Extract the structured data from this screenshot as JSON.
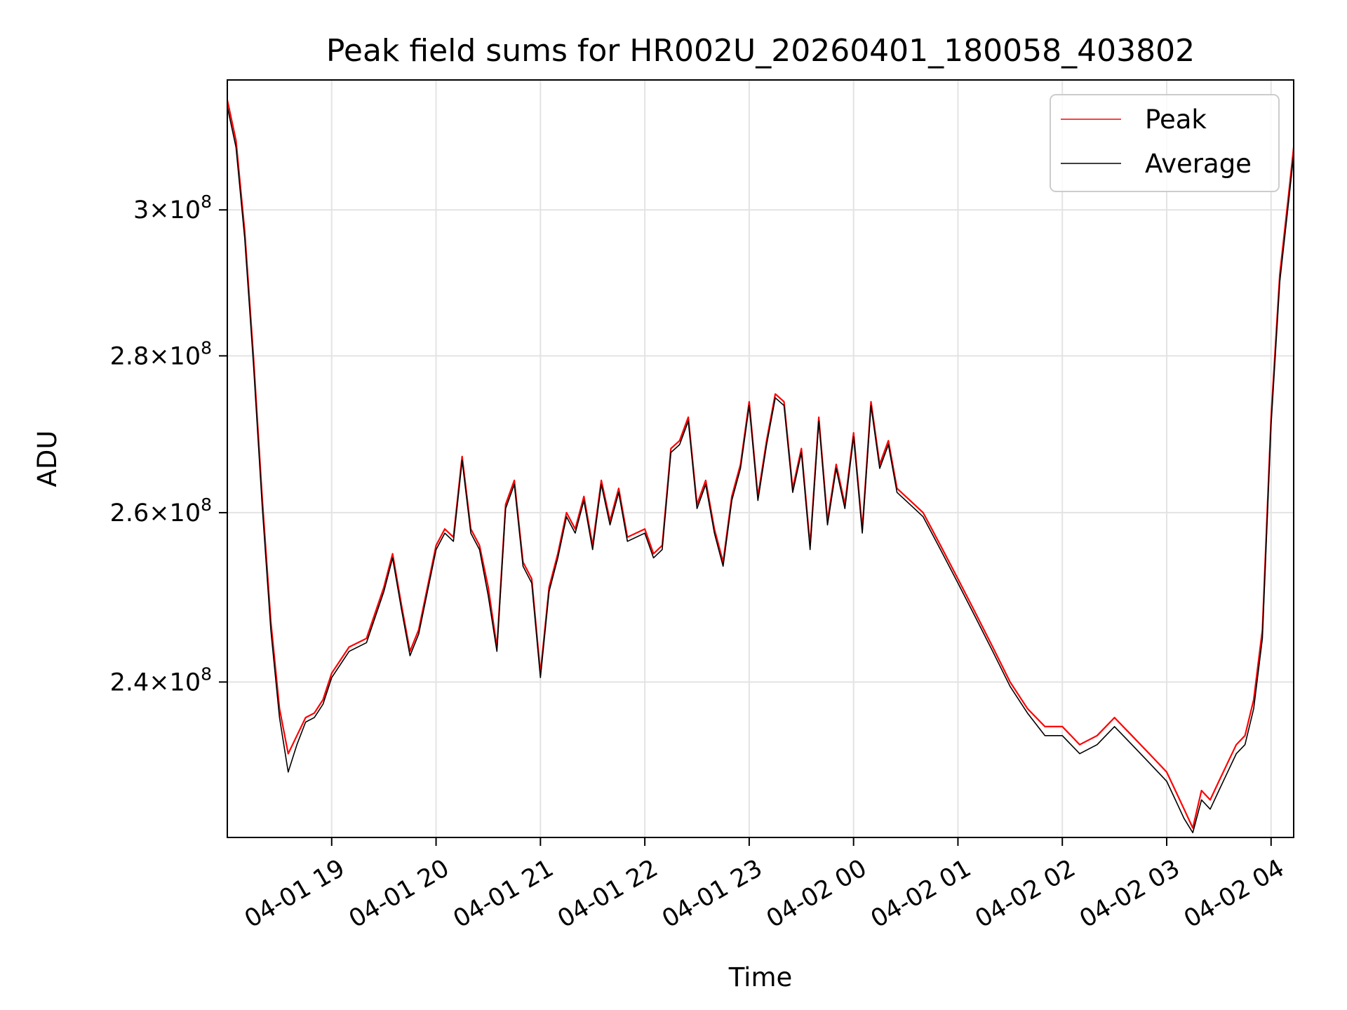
{
  "chart_data": {
    "type": "line",
    "title": "Peak field sums for HR002U_20260401_180058_403802",
    "xlabel": "Time",
    "ylabel": "ADU",
    "x_ticks": [
      "04-01 19",
      "04-01 20",
      "04-01 21",
      "04-01 22",
      "04-01 23",
      "04-02 00",
      "04-02 01",
      "04-02 02",
      "04-02 03",
      "04-02 04"
    ],
    "y_ticks": [
      {
        "value": 240000000,
        "mantissa": "2.4",
        "exponent": "8"
      },
      {
        "value": 260000000,
        "mantissa": "2.6",
        "exponent": "8"
      },
      {
        "value": 280000000,
        "mantissa": "2.8",
        "exponent": "8"
      },
      {
        "value": 300000000,
        "mantissa": "3",
        "exponent": "8"
      }
    ],
    "x_range": [
      "2026-04-01 18:00",
      "2026-04-02 04:13"
    ],
    "y_range": [
      223000000,
      319000000
    ],
    "y_scale": "log",
    "grid": true,
    "legend_position": "top-right",
    "series": [
      {
        "name": "Peak",
        "color": "#ff0000",
        "x": [
          "2026-04-01 18:00",
          "2026-04-01 18:05",
          "2026-04-01 18:10",
          "2026-04-01 18:15",
          "2026-04-01 18:20",
          "2026-04-01 18:25",
          "2026-04-01 18:30",
          "2026-04-01 18:35",
          "2026-04-01 18:40",
          "2026-04-01 18:45",
          "2026-04-01 18:50",
          "2026-04-01 18:55",
          "2026-04-01 19:00",
          "2026-04-01 19:10",
          "2026-04-01 19:20",
          "2026-04-01 19:30",
          "2026-04-01 19:35",
          "2026-04-01 19:40",
          "2026-04-01 19:45",
          "2026-04-01 19:50",
          "2026-04-01 20:00",
          "2026-04-01 20:05",
          "2026-04-01 20:10",
          "2026-04-01 20:15",
          "2026-04-01 20:20",
          "2026-04-01 20:25",
          "2026-04-01 20:30",
          "2026-04-01 20:35",
          "2026-04-01 20:40",
          "2026-04-01 20:45",
          "2026-04-01 20:50",
          "2026-04-01 20:55",
          "2026-04-01 21:00",
          "2026-04-01 21:05",
          "2026-04-01 21:10",
          "2026-04-01 21:15",
          "2026-04-01 21:20",
          "2026-04-01 21:25",
          "2026-04-01 21:30",
          "2026-04-01 21:35",
          "2026-04-01 21:40",
          "2026-04-01 21:45",
          "2026-04-01 21:50",
          "2026-04-01 22:00",
          "2026-04-01 22:05",
          "2026-04-01 22:10",
          "2026-04-01 22:15",
          "2026-04-01 22:20",
          "2026-04-01 22:25",
          "2026-04-01 22:30",
          "2026-04-01 22:35",
          "2026-04-01 22:40",
          "2026-04-01 22:45",
          "2026-04-01 22:50",
          "2026-04-01 22:55",
          "2026-04-01 23:00",
          "2026-04-01 23:05",
          "2026-04-01 23:10",
          "2026-04-01 23:15",
          "2026-04-01 23:20",
          "2026-04-01 23:25",
          "2026-04-01 23:30",
          "2026-04-01 23:35",
          "2026-04-01 23:40",
          "2026-04-01 23:45",
          "2026-04-01 23:50",
          "2026-04-01 23:55",
          "2026-04-02 00:00",
          "2026-04-02 00:05",
          "2026-04-02 00:10",
          "2026-04-02 00:15",
          "2026-04-02 00:20",
          "2026-04-02 00:25",
          "2026-04-02 00:30",
          "2026-04-02 00:35",
          "2026-04-02 00:40",
          "2026-04-02 00:45",
          "2026-04-02 00:50",
          "2026-04-02 01:00",
          "2026-04-02 01:10",
          "2026-04-02 01:20",
          "2026-04-02 01:30",
          "2026-04-02 01:40",
          "2026-04-02 01:50",
          "2026-04-02 02:00",
          "2026-04-02 02:10",
          "2026-04-02 02:20",
          "2026-04-02 02:30",
          "2026-04-02 02:40",
          "2026-04-02 02:50",
          "2026-04-02 03:00",
          "2026-04-02 03:05",
          "2026-04-02 03:10",
          "2026-04-02 03:15",
          "2026-04-02 03:20",
          "2026-04-02 03:25",
          "2026-04-02 03:30",
          "2026-04-02 03:35",
          "2026-04-02 03:40",
          "2026-04-02 03:45",
          "2026-04-02 03:50",
          "2026-04-02 03:55",
          "2026-04-02 04:00",
          "2026-04-02 04:05",
          "2026-04-02 04:10",
          "2026-04-02 04:13"
        ],
        "y": [
          316000000,
          310000000,
          297000000,
          280000000,
          262000000,
          247000000,
          237000000,
          232000000,
          234000000,
          236000000,
          236500000,
          238000000,
          241000000,
          244000000,
          245000000,
          251000000,
          255000000,
          249000000,
          243500000,
          246000000,
          256000000,
          258000000,
          257000000,
          267000000,
          258000000,
          256000000,
          251000000,
          244000000,
          261000000,
          264000000,
          254000000,
          252000000,
          241000000,
          251000000,
          255000000,
          260000000,
          258000000,
          262000000,
          256000000,
          264000000,
          259000000,
          263000000,
          257000000,
          258000000,
          255000000,
          256000000,
          268000000,
          269000000,
          272000000,
          261000000,
          264000000,
          258000000,
          254000000,
          262000000,
          266000000,
          274000000,
          262000000,
          269000000,
          275000000,
          274000000,
          263000000,
          268000000,
          256000000,
          272000000,
          259000000,
          266000000,
          261000000,
          270000000,
          258000000,
          274000000,
          266000000,
          269000000,
          263000000,
          262000000,
          261000000,
          260000000,
          258000000,
          256000000,
          252000000,
          248000000,
          244000000,
          240000000,
          237000000,
          235000000,
          235000000,
          233000000,
          234000000,
          236000000,
          234000000,
          232000000,
          230000000,
          228000000,
          226000000,
          224000000,
          228000000,
          227000000,
          229000000,
          231000000,
          233000000,
          234000000,
          238000000,
          246000000,
          272000000,
          291000000,
          302000000,
          309000000
        ]
      },
      {
        "name": "Average",
        "color": "#000000",
        "x": [
          "2026-04-01 18:00",
          "2026-04-01 18:05",
          "2026-04-01 18:10",
          "2026-04-01 18:15",
          "2026-04-01 18:20",
          "2026-04-01 18:25",
          "2026-04-01 18:30",
          "2026-04-01 18:35",
          "2026-04-01 18:40",
          "2026-04-01 18:45",
          "2026-04-01 18:50",
          "2026-04-01 18:55",
          "2026-04-01 19:00",
          "2026-04-01 19:10",
          "2026-04-01 19:20",
          "2026-04-01 19:30",
          "2026-04-01 19:35",
          "2026-04-01 19:40",
          "2026-04-01 19:45",
          "2026-04-01 19:50",
          "2026-04-01 20:00",
          "2026-04-01 20:05",
          "2026-04-01 20:10",
          "2026-04-01 20:15",
          "2026-04-01 20:20",
          "2026-04-01 20:25",
          "2026-04-01 20:30",
          "2026-04-01 20:35",
          "2026-04-01 20:40",
          "2026-04-01 20:45",
          "2026-04-01 20:50",
          "2026-04-01 20:55",
          "2026-04-01 21:00",
          "2026-04-01 21:05",
          "2026-04-01 21:10",
          "2026-04-01 21:15",
          "2026-04-01 21:20",
          "2026-04-01 21:25",
          "2026-04-01 21:30",
          "2026-04-01 21:35",
          "2026-04-01 21:40",
          "2026-04-01 21:45",
          "2026-04-01 21:50",
          "2026-04-01 22:00",
          "2026-04-01 22:05",
          "2026-04-01 22:10",
          "2026-04-01 22:15",
          "2026-04-01 22:20",
          "2026-04-01 22:25",
          "2026-04-01 22:30",
          "2026-04-01 22:35",
          "2026-04-01 22:40",
          "2026-04-01 22:45",
          "2026-04-01 22:50",
          "2026-04-01 22:55",
          "2026-04-01 23:00",
          "2026-04-01 23:05",
          "2026-04-01 23:10",
          "2026-04-01 23:15",
          "2026-04-01 23:20",
          "2026-04-01 23:25",
          "2026-04-01 23:30",
          "2026-04-01 23:35",
          "2026-04-01 23:40",
          "2026-04-01 23:45",
          "2026-04-01 23:50",
          "2026-04-01 23:55",
          "2026-04-02 00:00",
          "2026-04-02 00:05",
          "2026-04-02 00:10",
          "2026-04-02 00:15",
          "2026-04-02 00:20",
          "2026-04-02 00:25",
          "2026-04-02 00:30",
          "2026-04-02 00:35",
          "2026-04-02 00:40",
          "2026-04-02 00:45",
          "2026-04-02 00:50",
          "2026-04-02 01:00",
          "2026-04-02 01:10",
          "2026-04-02 01:20",
          "2026-04-02 01:30",
          "2026-04-02 01:40",
          "2026-04-02 01:50",
          "2026-04-02 02:00",
          "2026-04-02 02:10",
          "2026-04-02 02:20",
          "2026-04-02 02:30",
          "2026-04-02 02:40",
          "2026-04-02 02:50",
          "2026-04-02 03:00",
          "2026-04-02 03:05",
          "2026-04-02 03:10",
          "2026-04-02 03:15",
          "2026-04-02 03:20",
          "2026-04-02 03:25",
          "2026-04-02 03:30",
          "2026-04-02 03:35",
          "2026-04-02 03:40",
          "2026-04-02 03:45",
          "2026-04-02 03:50",
          "2026-04-02 03:55",
          "2026-04-02 04:00",
          "2026-04-02 04:05",
          "2026-04-02 04:10",
          "2026-04-02 04:13"
        ],
        "y": [
          315000000,
          309000000,
          296000000,
          279000000,
          261000000,
          246000000,
          236000000,
          230000000,
          233000000,
          235500000,
          236000000,
          237500000,
          240500000,
          243500000,
          244500000,
          250500000,
          254500000,
          248500000,
          243000000,
          245500000,
          255500000,
          257500000,
          256500000,
          266500000,
          257500000,
          255500000,
          250000000,
          243500000,
          260500000,
          263500000,
          253500000,
          251500000,
          240500000,
          250500000,
          254500000,
          259500000,
          257500000,
          261500000,
          255500000,
          263500000,
          258500000,
          262500000,
          256500000,
          257500000,
          254500000,
          255500000,
          267500000,
          268500000,
          271500000,
          260500000,
          263500000,
          257500000,
          253500000,
          261500000,
          265500000,
          273500000,
          261500000,
          268500000,
          274500000,
          273500000,
          262500000,
          267500000,
          255500000,
          271500000,
          258500000,
          265500000,
          260500000,
          269500000,
          257500000,
          273500000,
          265500000,
          268500000,
          262500000,
          261500000,
          260500000,
          259500000,
          257500000,
          255500000,
          251500000,
          247500000,
          243500000,
          239500000,
          236500000,
          234000000,
          234000000,
          232000000,
          233000000,
          235000000,
          233000000,
          231000000,
          229000000,
          227000000,
          225000000,
          223500000,
          227000000,
          226000000,
          228000000,
          230000000,
          232000000,
          233000000,
          237000000,
          245000000,
          271000000,
          290000000,
          301000000,
          308000000
        ]
      }
    ]
  }
}
